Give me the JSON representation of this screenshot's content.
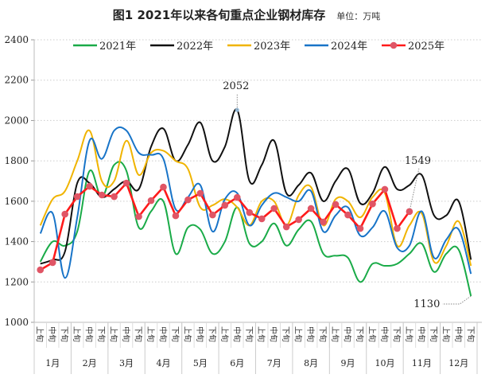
{
  "chart_data": {
    "type": "line",
    "title": "图1  2021年以来各旬重点企业钢材库存",
    "unit": "单位：万吨",
    "ylim": [
      1000,
      2400
    ],
    "yticks": [
      1000,
      1200,
      1400,
      1600,
      1800,
      2000,
      2200,
      2400
    ],
    "grid": true,
    "legend_position": "top",
    "months": [
      "1月",
      "2月",
      "3月",
      "4月",
      "5月",
      "6月",
      "7月",
      "8月",
      "9月",
      "10月",
      "11月",
      "12月"
    ],
    "periods": [
      "上旬",
      "中旬",
      "下旬"
    ],
    "series": [
      {
        "name": "2021年",
        "color": "#1aab48",
        "smooth": true,
        "values": [
          1300,
          1400,
          1380,
          1450,
          1750,
          1620,
          1780,
          1750,
          1470,
          1550,
          1600,
          1340,
          1470,
          1460,
          1340,
          1400,
          1570,
          1390,
          1400,
          1490,
          1380,
          1460,
          1500,
          1340,
          1330,
          1320,
          1200,
          1290,
          1280,
          1290,
          1340,
          1390,
          1250,
          1340,
          1360,
          1130
        ]
      },
      {
        "name": "2022年",
        "color": "#111111",
        "smooth": true,
        "values": [
          1290,
          1310,
          1350,
          1690,
          1690,
          1620,
          1660,
          1700,
          1660,
          1870,
          1960,
          1800,
          1880,
          1990,
          1800,
          1870,
          2052,
          1700,
          1780,
          1900,
          1640,
          1680,
          1740,
          1600,
          1700,
          1760,
          1590,
          1640,
          1770,
          1660,
          1680,
          1730,
          1530,
          1530,
          1600,
          1310
        ]
      },
      {
        "name": "2023年",
        "color": "#f0b400",
        "smooth": true,
        "values": [
          1480,
          1610,
          1650,
          1800,
          1950,
          1700,
          1700,
          1900,
          1730,
          1840,
          1850,
          1800,
          1760,
          1570,
          1580,
          1610,
          1570,
          1480,
          1600,
          1600,
          1480,
          1630,
          1670,
          1480,
          1610,
          1600,
          1520,
          1620,
          1640,
          1380,
          1480,
          1540,
          1300,
          1380,
          1500,
          1280
        ]
      },
      {
        "name": "2024年",
        "color": "#1874c8",
        "smooth": true,
        "values": [
          1440,
          1540,
          1220,
          1520,
          1900,
          1810,
          1950,
          1950,
          1840,
          1830,
          1810,
          1560,
          1620,
          1680,
          1450,
          1610,
          1640,
          1480,
          1580,
          1640,
          1620,
          1600,
          1650,
          1450,
          1530,
          1570,
          1430,
          1470,
          1550,
          1370,
          1380,
          1550,
          1320,
          1410,
          1460,
          1240
        ]
      },
      {
        "name": "2025年",
        "color": "#ff1a1a",
        "marker_color": "#e05565",
        "smooth": false,
        "values": [
          1260,
          1296,
          1536,
          1623,
          1674,
          1631,
          1623,
          1690,
          1524,
          1603,
          1670,
          1528,
          1607,
          1639,
          1532,
          1580,
          1619,
          1544,
          1513,
          1564,
          1473,
          1509,
          1564,
          1497,
          1584,
          1532,
          1465,
          1587,
          1659,
          1465,
          1549
        ]
      }
    ],
    "annotations": [
      {
        "text": "2052",
        "series": "2022年",
        "index": 16
      },
      {
        "text": "1549",
        "series": "2025年",
        "index": 30
      },
      {
        "text": "1130",
        "series": "2021年",
        "index": 35
      }
    ]
  }
}
